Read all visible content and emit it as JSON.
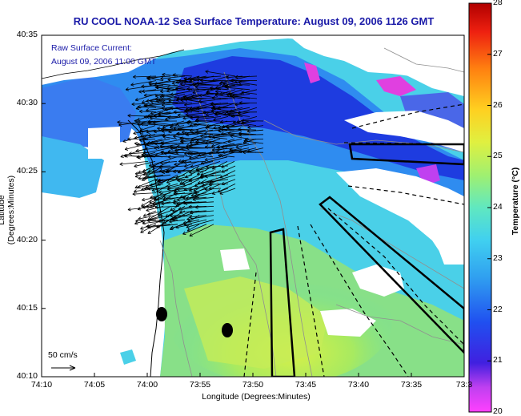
{
  "title": "RU COOL  NOAA-12  Sea Surface Temperature:  August 09, 2006 1126 GMT",
  "legend": {
    "line1": "Raw Surface Current:",
    "line2": "August 09, 2006 11:00 GMT"
  },
  "scale_label": "50 cm/s",
  "axes": {
    "ylabel": "Latitude (Degrees:Minutes)",
    "xlabel": "Longitude (Degrees:Minutes)",
    "yticks": [
      "40:35",
      "40:30",
      "40:25",
      "40:20",
      "40:15",
      "40:10"
    ],
    "xticks": [
      "74:10",
      "74:05",
      "74:00",
      "73:55",
      "73:50",
      "73:45",
      "73:40",
      "73:35",
      "73:3"
    ]
  },
  "colorbar": {
    "label": "Temperature (°C)",
    "ticks": [
      "28",
      "27",
      "26",
      "25",
      "24",
      "23",
      "22",
      "21",
      "20"
    ],
    "range": [
      20,
      28
    ]
  },
  "colors": {
    "land": "#ffffff",
    "deep_blue": "#1e3ce0",
    "mid_blue": "#2f8cf0",
    "cyan": "#3cc8f0",
    "aqua": "#58e2c8",
    "green": "#8be680",
    "yellow_green": "#c8ec50"
  },
  "markers": {
    "dots": 2
  }
}
